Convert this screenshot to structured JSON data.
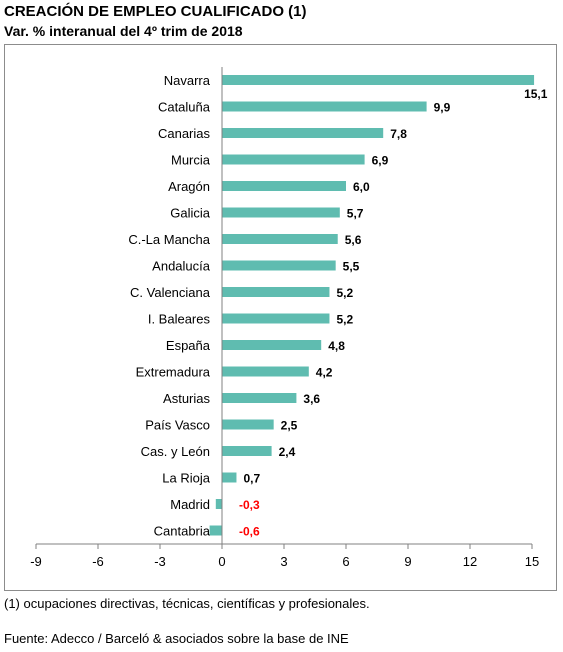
{
  "header": {
    "title": "CREACIÓN DE EMPLEO CUALIFICADO (1)",
    "subtitle": "Var. % interanual del 4º trim de 2018"
  },
  "footer": {
    "note": "(1) ocupaciones directivas, técnicas, científicas y profesionales.",
    "source": "Fuente: Adecco / Barceló & asociados sobre la base de INE"
  },
  "chart_data": {
    "type": "bar",
    "orientation": "horizontal",
    "categories": [
      "Navarra",
      "Cataluña",
      "Canarias",
      "Murcia",
      "Aragón",
      "Galicia",
      "C.-La Mancha",
      "Andalucía",
      "C. Valenciana",
      "I. Baleares",
      "España",
      "Extremadura",
      "Asturias",
      "País Vasco",
      "Cas. y León",
      "La Rioja",
      "Madrid",
      "Cantabria"
    ],
    "values": [
      15.1,
      9.9,
      7.8,
      6.9,
      6.0,
      5.7,
      5.6,
      5.5,
      5.2,
      5.2,
      4.8,
      4.2,
      3.6,
      2.5,
      2.4,
      0.7,
      -0.3,
      -0.6
    ],
    "value_labels": [
      "15,1",
      "9,9",
      "7,8",
      "6,9",
      "6,0",
      "5,7",
      "5,6",
      "5,5",
      "5,2",
      "5,2",
      "4,8",
      "4,2",
      "3,6",
      "2,5",
      "2,4",
      "0,7",
      "-0,3",
      "-0,6"
    ],
    "xlim": [
      -9,
      15
    ],
    "xticks": [
      -9,
      -6,
      -3,
      0,
      3,
      6,
      9,
      12,
      15
    ],
    "xtick_labels": [
      "-9",
      "-6",
      "-3",
      "0",
      "3",
      "6",
      "9",
      "12",
      "15"
    ],
    "grid": false,
    "legend": "none",
    "colors": {
      "bar": "#5fbcb0",
      "positive_label": "#000000",
      "negative_label": "#ff0000",
      "axis": "#808080"
    }
  }
}
